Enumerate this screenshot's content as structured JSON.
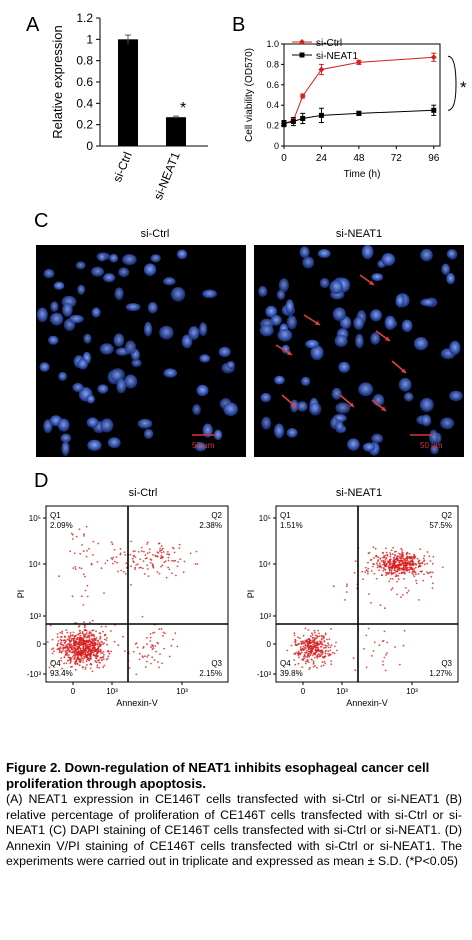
{
  "figure": {
    "panel_a": {
      "label": "A"
    },
    "panel_b": {
      "label": "B"
    },
    "panel_c": {
      "label": "C",
      "left_title": "si-Ctrl",
      "right_title": "si-NEAT1",
      "scale_bar": "50 μm"
    },
    "panel_d": {
      "label": "D",
      "left_title": "si-Ctrl",
      "right_title": "si-NEAT1",
      "xlabel": "Annexin-V",
      "ylabel": "PI",
      "left_quadrants": {
        "q1": "2.09%",
        "q2": "2.38%",
        "q3": "2.15%",
        "q4": "93.4%"
      },
      "right_quadrants": {
        "q1": "1.51%",
        "q2": "57.5%",
        "q3": "1.27%",
        "q4": "39.8%"
      },
      "quadrant_names": {
        "q1": "Q1",
        "q2": "Q2",
        "q3": "Q3",
        "q4": "Q4"
      }
    }
  },
  "chart_data": [
    {
      "type": "bar",
      "categories": [
        "si-Ctrl",
        "si-NEAT1"
      ],
      "values": [
        1.0,
        0.27
      ],
      "errors": [
        0.04,
        0.01
      ],
      "ylabel": "Relative expression",
      "ylim": [
        0,
        1.2
      ],
      "yticks": [
        "0",
        "0.2",
        "0.4",
        "0.6",
        "0.8",
        "1",
        "1.2"
      ],
      "annotation": "*",
      "bar_color": "#000000"
    },
    {
      "type": "line",
      "xlabel": "Time (h)",
      "ylabel": "Cell viability (OD570)",
      "xlim": [
        0,
        100
      ],
      "ylim": [
        0,
        1.0
      ],
      "xticks": [
        0,
        24,
        48,
        72,
        96
      ],
      "yticks": [
        "0",
        "0.2",
        "0.4",
        "0.6",
        "0.8",
        "1.0"
      ],
      "series": [
        {
          "name": "si-Ctrl",
          "color": "#d42020",
          "x": [
            0,
            6,
            12,
            24,
            48,
            96
          ],
          "y": [
            0.22,
            0.25,
            0.49,
            0.75,
            0.82,
            0.87
          ],
          "err": [
            0.03,
            0.02,
            0.02,
            0.05,
            0.02,
            0.04
          ]
        },
        {
          "name": "si-NEAT1",
          "color": "#000000",
          "x": [
            0,
            6,
            12,
            24,
            48,
            96
          ],
          "y": [
            0.22,
            0.24,
            0.27,
            0.3,
            0.32,
            0.35
          ],
          "err": [
            0.03,
            0.04,
            0.05,
            0.07,
            0.02,
            0.05
          ]
        }
      ],
      "legend": "top-left",
      "annotation": "*"
    }
  ],
  "caption": {
    "title": "Figure 2. Down-regulation of NEAT1 inhibits esophageal cancer cell proliferation through apoptosis.",
    "body": "(A) NEAT1 expression in CE146T cells transfected with si-Ctrl or si-NEAT1 (B) relative percentage of proliferation of CE146T cells transfected with si-Ctrl or si-NEAT1 (C) DAPI staining of CE146T cells transfected with si-Ctrl or si-NEAT1. (D) Annexin V/PI staining of CE146T cells transfected with si-Ctrl or si-NEAT1. The experiments were carried out in triplicate and expressed as mean ± S.D. (*P<0.05)"
  }
}
